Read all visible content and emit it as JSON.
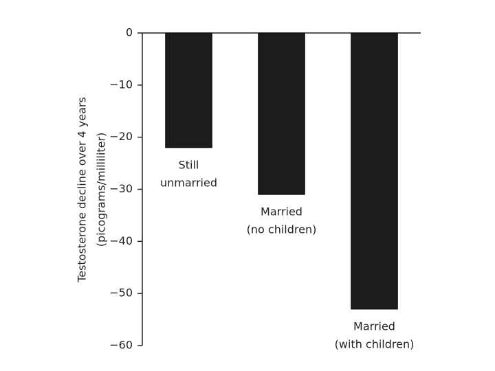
{
  "chart_data": {
    "type": "bar",
    "ylabel": [
      "Testosterone decline over 4 years",
      "(picograms/milliliter)"
    ],
    "categories": [
      [
        "Still",
        "unmarried"
      ],
      [
        "Married",
        "(no children)"
      ],
      [
        "Married",
        "(with children)"
      ]
    ],
    "values": [
      -22,
      -31,
      -53
    ],
    "color": "#1c1c1c",
    "ylim": [
      -60,
      0
    ],
    "yticks": [
      {
        "value": 0,
        "label": "0"
      },
      {
        "value": -10,
        "label": "−10"
      },
      {
        "value": -20,
        "label": "−20"
      },
      {
        "value": -30,
        "label": "−30"
      },
      {
        "value": -40,
        "label": "−40"
      },
      {
        "value": -50,
        "label": "−50"
      },
      {
        "value": -60,
        "label": "−60"
      }
    ]
  }
}
